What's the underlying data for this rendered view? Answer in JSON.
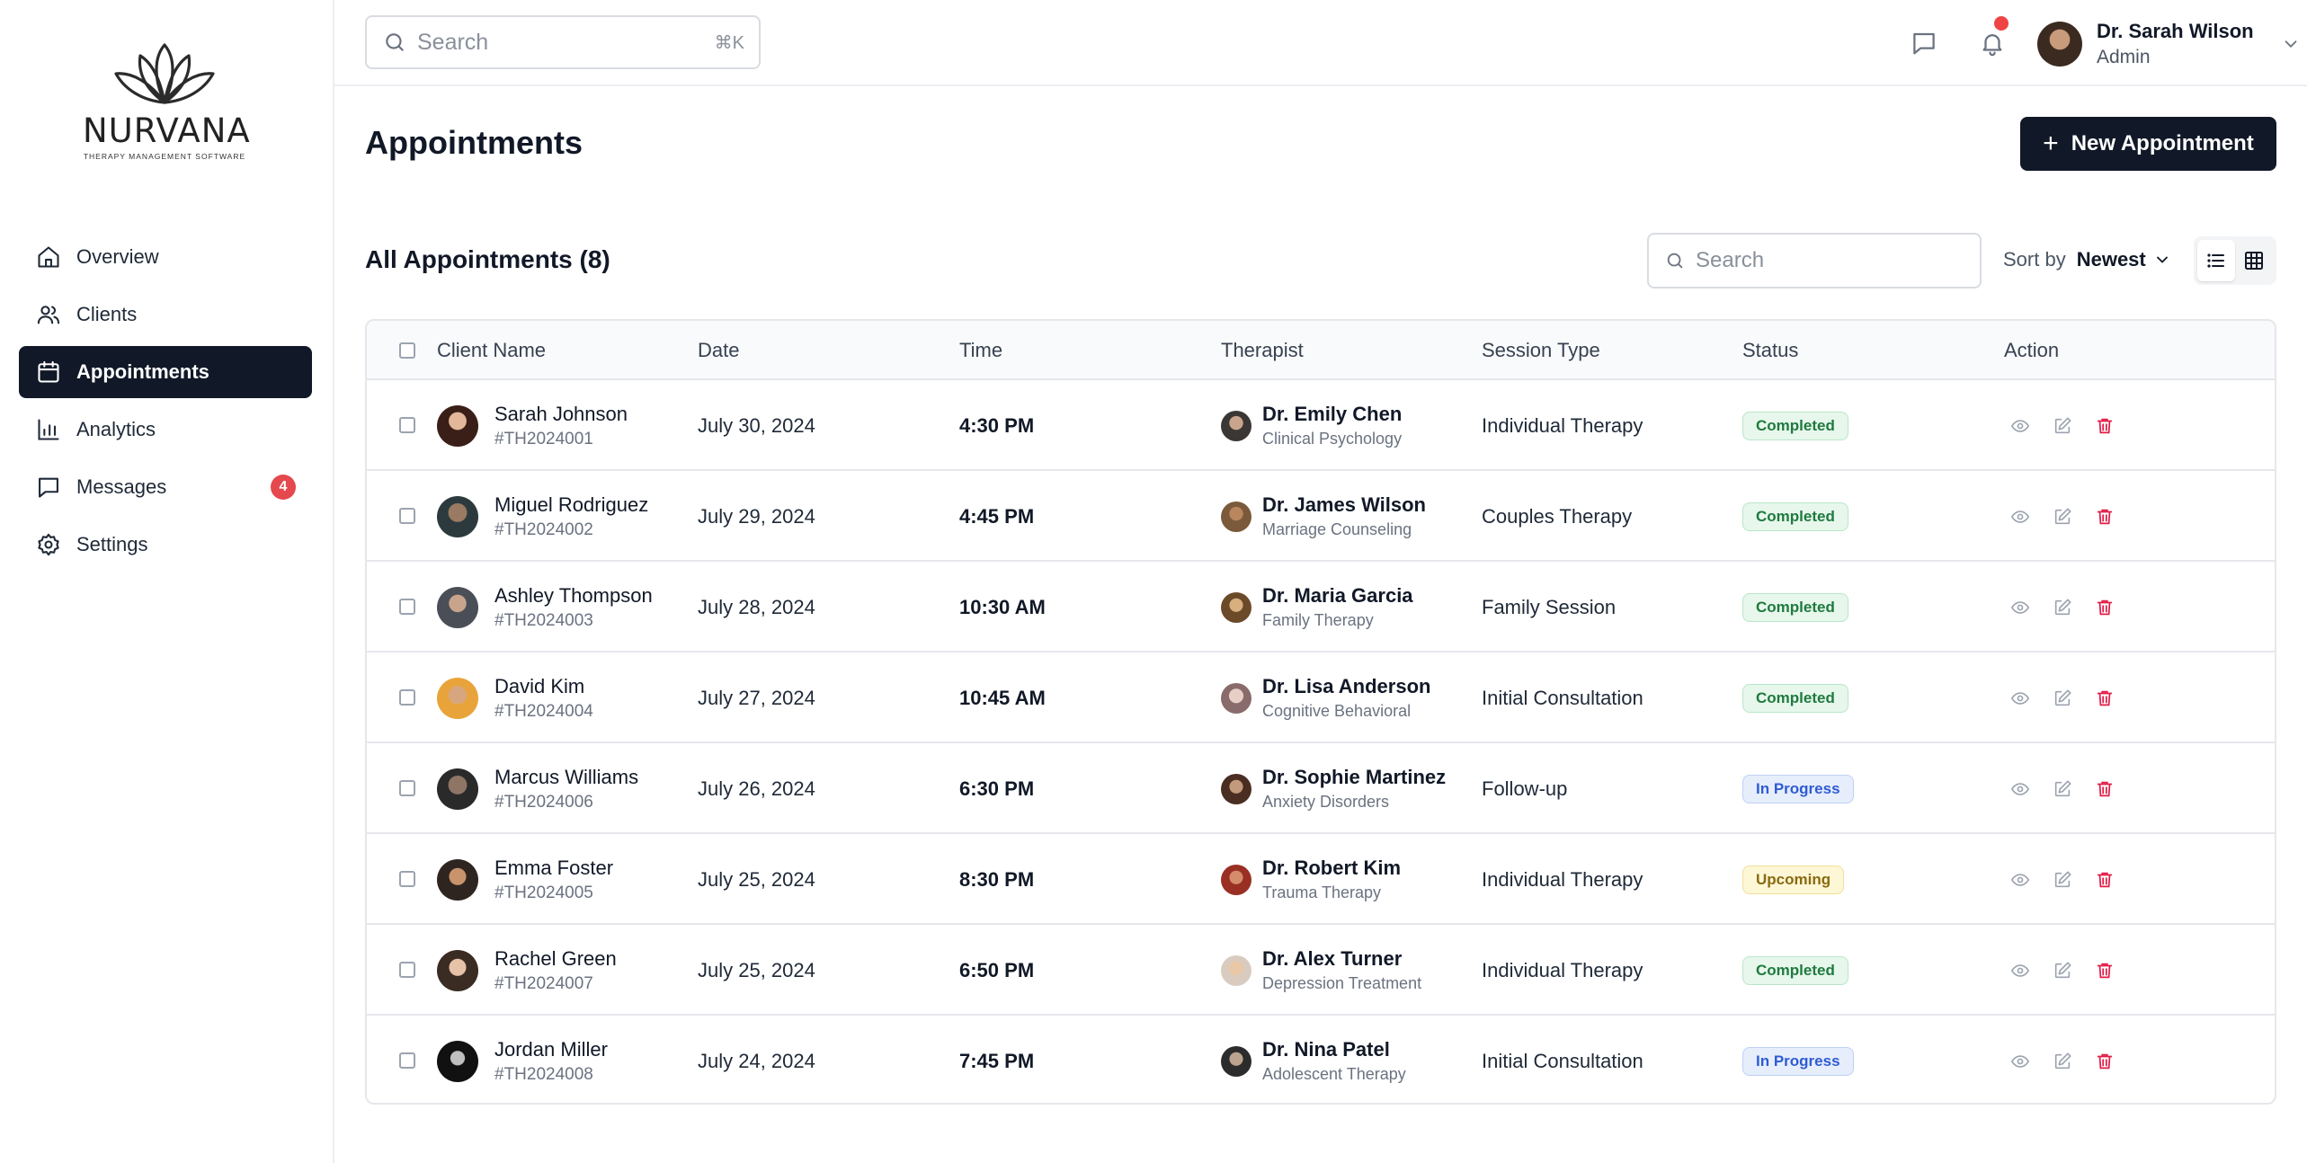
{
  "brand": {
    "name": "NURVANA",
    "tagline": "THERAPY MANAGEMENT SOFTWARE"
  },
  "sidebar": {
    "items": [
      {
        "label": "Overview",
        "icon": "home-icon",
        "active": false
      },
      {
        "label": "Clients",
        "icon": "users-icon",
        "active": false
      },
      {
        "label": "Appointments",
        "icon": "calendar-icon",
        "active": true
      },
      {
        "label": "Analytics",
        "icon": "bar-chart-icon",
        "active": false
      },
      {
        "label": "Messages",
        "icon": "message-icon",
        "active": false,
        "badge": "4"
      },
      {
        "label": "Settings",
        "icon": "gear-icon",
        "active": false
      }
    ]
  },
  "header": {
    "search_placeholder": "Search",
    "search_shortcut": "⌘K",
    "user": {
      "name": "Dr. Sarah Wilson",
      "role": "Admin"
    }
  },
  "page": {
    "title": "Appointments",
    "new_button": "New Appointment",
    "list_title": "All Appointments (8)",
    "search_placeholder": "Search",
    "sort_label": "Sort by",
    "sort_value": "Newest"
  },
  "table": {
    "columns": [
      "Client Name",
      "Date",
      "Time",
      "Therapist",
      "Session Type",
      "Status",
      "Action"
    ],
    "rows": [
      {
        "client": "Sarah Johnson",
        "id": "#TH2024001",
        "date": "July 30, 2024",
        "time": "4:30 PM",
        "therapist": "Dr. Emily Chen",
        "specialty": "Clinical Psychology",
        "session": "Individual Therapy",
        "status": "Completed"
      },
      {
        "client": "Miguel Rodriguez",
        "id": "#TH2024002",
        "date": "July 29, 2024",
        "time": "4:45 PM",
        "therapist": "Dr. James Wilson",
        "specialty": "Marriage Counseling",
        "session": "Couples Therapy",
        "status": "Completed"
      },
      {
        "client": "Ashley Thompson",
        "id": "#TH2024003",
        "date": "July 28, 2024",
        "time": "10:30 AM",
        "therapist": "Dr. Maria Garcia",
        "specialty": "Family Therapy",
        "session": "Family Session",
        "status": "Completed"
      },
      {
        "client": "David Kim",
        "id": "#TH2024004",
        "date": "July 27, 2024",
        "time": "10:45 AM",
        "therapist": "Dr. Lisa Anderson",
        "specialty": "Cognitive Behavioral",
        "session": "Initial Consultation",
        "status": "Completed"
      },
      {
        "client": "Marcus Williams",
        "id": "#TH2024006",
        "date": "July 26, 2024",
        "time": "6:30 PM",
        "therapist": "Dr. Sophie Martinez",
        "specialty": "Anxiety Disorders",
        "session": "Follow-up",
        "status": "In Progress"
      },
      {
        "client": "Emma Foster",
        "id": "#TH2024005",
        "date": "July 25, 2024",
        "time": "8:30 PM",
        "therapist": "Dr. Robert Kim",
        "specialty": "Trauma Therapy",
        "session": "Individual Therapy",
        "status": "Upcoming"
      },
      {
        "client": "Rachel Green",
        "id": "#TH2024007",
        "date": "July 25, 2024",
        "time": "6:50 PM",
        "therapist": "Dr. Alex Turner",
        "specialty": "Depression Treatment",
        "session": "Individual Therapy",
        "status": "Completed"
      },
      {
        "client": "Jordan Miller",
        "id": "#TH2024008",
        "date": "July 24, 2024",
        "time": "7:45 PM",
        "therapist": "Dr. Nina Patel",
        "specialty": "Adolescent Therapy",
        "session": "Initial Consultation",
        "status": "In Progress"
      }
    ]
  },
  "colors": {
    "primary": "#111827",
    "badge": "#e5484d",
    "completed": "#1f7a3e",
    "in_progress": "#2f5bd3",
    "upcoming": "#8a6a10",
    "delete": "#e11d48"
  }
}
